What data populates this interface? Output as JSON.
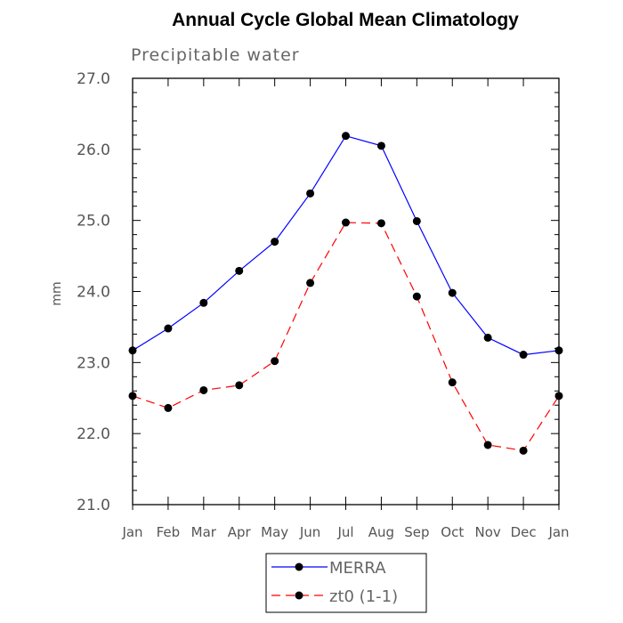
{
  "chart_data": {
    "type": "line",
    "title": "Annual Cycle Global Mean Climatology",
    "subtitle": "Precipitable water",
    "xlabel": "",
    "ylabel": "mm",
    "categories": [
      "Jan",
      "Feb",
      "Mar",
      "Apr",
      "May",
      "Jun",
      "Jul",
      "Aug",
      "Sep",
      "Oct",
      "Nov",
      "Dec",
      "Jan"
    ],
    "ylim": [
      21.0,
      27.0
    ],
    "yticks": [
      "21.0",
      "22.0",
      "23.0",
      "24.0",
      "25.0",
      "26.0",
      "27.0"
    ],
    "grid": false,
    "legend_position": "bottom-center",
    "series": [
      {
        "name": "MERRA",
        "color": "#0000ff",
        "dash": "solid",
        "marker": "filled-circle",
        "values": [
          23.17,
          23.48,
          23.84,
          24.29,
          24.7,
          25.38,
          26.19,
          26.05,
          24.99,
          23.98,
          23.35,
          23.11,
          23.17
        ]
      },
      {
        "name": "zt0 (1-1)",
        "color": "#ff0000",
        "dash": "dashed",
        "marker": "filled-circle",
        "values": [
          22.53,
          22.36,
          22.61,
          22.68,
          23.02,
          24.12,
          24.97,
          24.96,
          23.93,
          22.72,
          21.84,
          21.76,
          22.53
        ]
      }
    ]
  }
}
